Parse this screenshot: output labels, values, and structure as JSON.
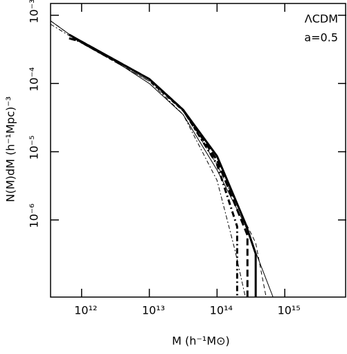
{
  "chart_data": {
    "type": "line",
    "xlabel": "M (h⁻¹M⊙)",
    "ylabel": "N(M)dM (h⁻¹Mpc)⁻³",
    "annotations": [
      "ΛCDM",
      "a=0.5"
    ],
    "xscale": "log",
    "yscale": "log",
    "xlim": [
      348000000000.0,
      8100000000000000.0
    ],
    "ylim": [
      7.4e-08,
      0.00149
    ],
    "xticks": [
      {
        "value": 1000000000000.0,
        "label": "10¹²"
      },
      {
        "value": 10000000000000.0,
        "label": "10¹³"
      },
      {
        "value": 100000000000000.0,
        "label": "10¹⁴"
      },
      {
        "value": 1000000000000000.0,
        "label": "10¹⁵"
      }
    ],
    "yticks": [
      {
        "value": 1e-06,
        "label": "10⁻⁶"
      },
      {
        "value": 1e-05,
        "label": "10⁻⁵"
      },
      {
        "value": 0.0001,
        "label": "10⁻⁴"
      },
      {
        "value": 0.001,
        "label": "10⁻³"
      }
    ],
    "series": [
      {
        "color": "#000",
        "width": 1,
        "dash": "none",
        "x": [
          348000000000.0,
          1000000000000.0,
          3160000000000.0,
          10000000000000.0,
          31600000000000.0,
          100000000000000.0,
          262000000000000.0,
          671000000000000.0
        ],
        "values": [
          0.00083,
          0.00039,
          0.00021,
          0.0001,
          3.5e-05,
          5.4e-06,
          8.3e-07,
          7.4e-08
        ]
      },
      {
        "color": "#000",
        "width": 3,
        "dash": "none",
        "x": [
          655000000000.0,
          1000000000000.0,
          10000000000000.0,
          31600000000000.0,
          100000000000000.0,
          262000000000000.0,
          372000000000000.0,
          372000000000000.0
        ],
        "values": [
          0.00052,
          0.00041,
          0.000116,
          4.1e-05,
          8.6e-06,
          8.9e-07,
          3.2e-07,
          7.4e-08
        ]
      },
      {
        "color": "#000",
        "width": 3,
        "dash": "10,5",
        "x": [
          655000000000.0,
          1000000000000.0,
          10000000000000.0,
          31600000000000.0,
          100000000000000.0,
          281000000000000.0,
          281000000000000.0
        ],
        "values": [
          0.00046,
          0.00041,
          0.000116,
          4.1e-05,
          7.5e-06,
          6e-07,
          7.4e-08
        ]
      },
      {
        "color": "#000",
        "width": 3,
        "dash": "8,4,2,4",
        "x": [
          655000000000.0,
          1000000000000.0,
          10000000000000.0,
          31600000000000.0,
          100000000000000.0,
          198000000000000.0,
          198000000000000.0
        ],
        "values": [
          0.00046,
          0.00041,
          0.000116,
          4.1e-05,
          6.5e-06,
          8e-07,
          7.4e-08
        ]
      },
      {
        "color": "#000",
        "width": 1,
        "dash": "6,3,2,3",
        "x": [
          348000000000.0,
          1000000000000.0,
          10000000000000.0,
          31600000000000.0,
          100000000000000.0,
          184000000000000.0,
          262000000000000.0
        ],
        "values": [
          0.00074,
          0.00039,
          0.000108,
          3.5e-05,
          3.8e-06,
          3.6e-07,
          7.4e-08
        ]
      },
      {
        "color": "#000",
        "width": 1,
        "dash": "6,4",
        "x": [
          348000000000.0,
          1000000000000.0,
          10000000000000.0,
          31600000000000.0,
          100000000000000.0,
          372000000000000.0,
          530000000000000.0
        ],
        "values": [
          0.00083,
          0.00039,
          0.000108,
          3.9e-05,
          6.5e-06,
          4.6e-07,
          7.4e-08
        ]
      }
    ]
  }
}
